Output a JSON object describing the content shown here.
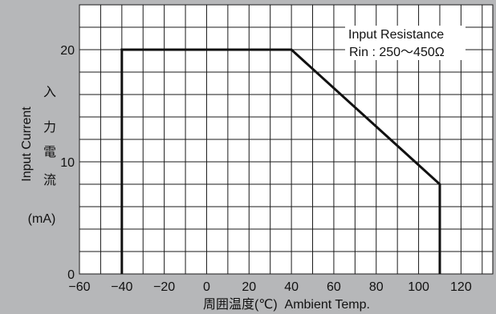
{
  "chart_data": {
    "type": "line",
    "title": "",
    "xlabel": "周囲温度(℃)  Ambient Temp.",
    "ylabel": "Input Current",
    "ylabel_jp": [
      "入",
      "力",
      "電",
      "流"
    ],
    "ylabel_unit": "(mA)",
    "xlim": [
      -60,
      135
    ],
    "ylim": [
      0,
      24
    ],
    "x_ticks": [
      -60,
      -40,
      -20,
      0,
      20,
      40,
      60,
      80,
      100,
      120
    ],
    "x_tick_labels": [
      "−60",
      "−40",
      "−20",
      "0",
      "20",
      "40",
      "60",
      "80",
      "100",
      "120"
    ],
    "y_ticks": [
      0,
      10,
      20
    ],
    "y_tick_labels": [
      "0",
      "10",
      "20"
    ],
    "grid": true,
    "series": [
      {
        "name": "",
        "x": [
          -40,
          -40,
          40,
          110,
          110
        ],
        "y": [
          0,
          20,
          20,
          8,
          0
        ]
      }
    ],
    "annotations": [
      "Input Resistance",
      "Rin : 250～450Ω"
    ]
  },
  "colors": {
    "background": "#b6b7b9",
    "plot_background": "#ffffff",
    "grid": "#1a1a1a",
    "line": "#111111"
  }
}
